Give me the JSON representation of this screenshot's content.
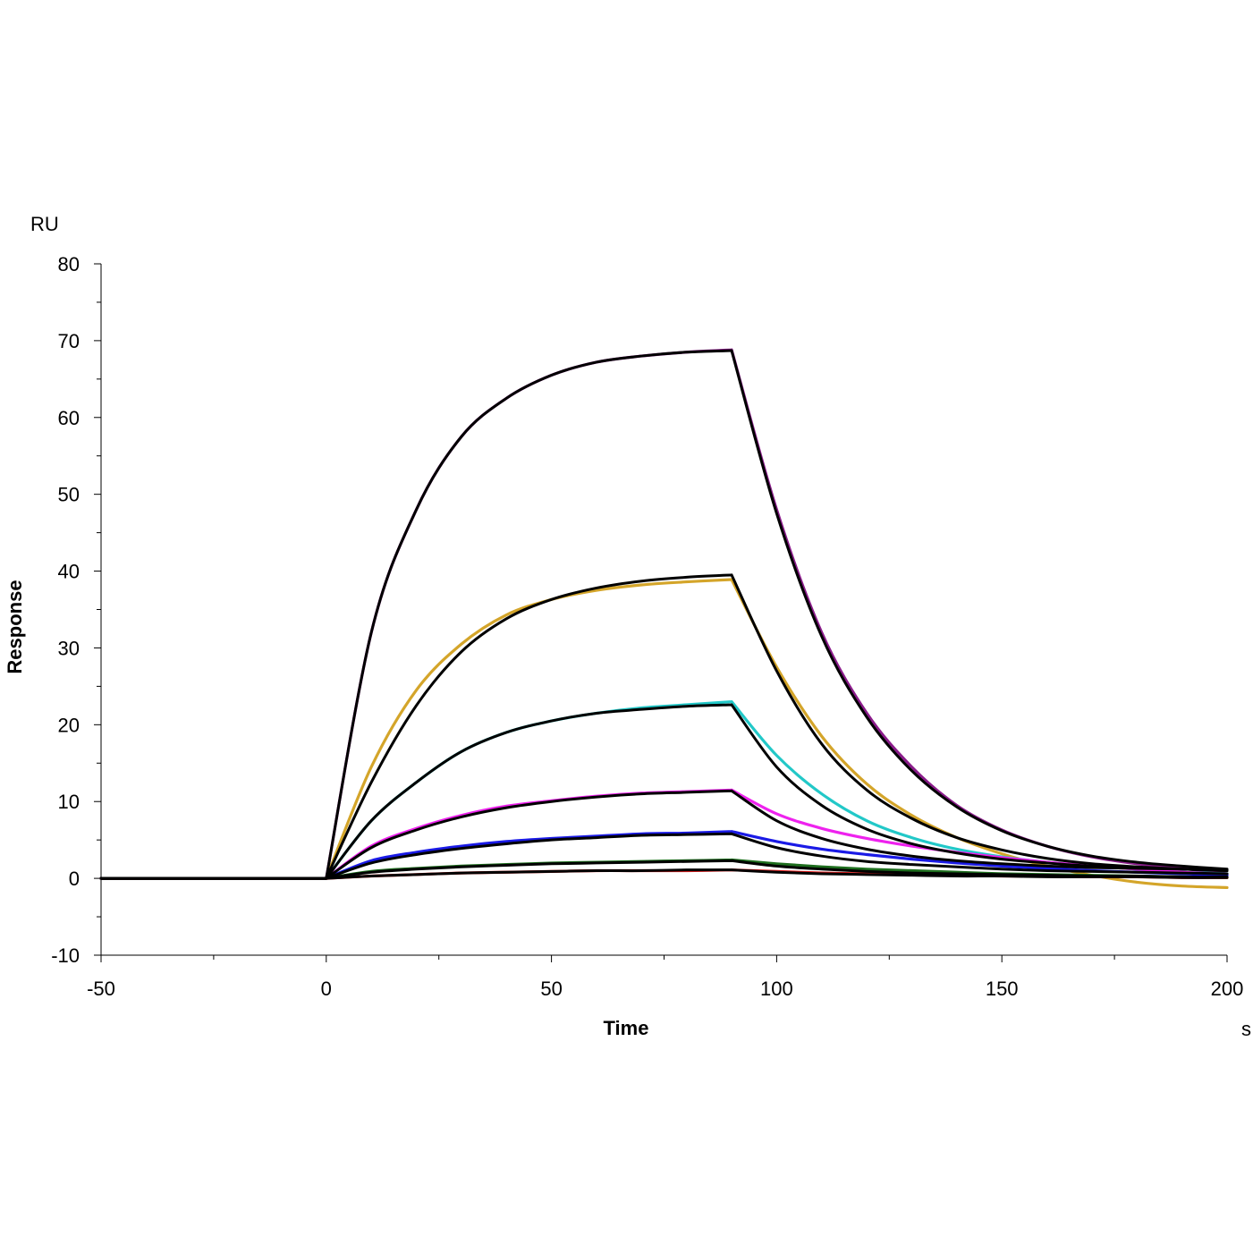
{
  "chart_data": {
    "type": "line",
    "title": "",
    "xlabel": "Time",
    "ylabel": "Response",
    "x_unit": "s",
    "y_unit": "RU",
    "xlim": [
      -50,
      200
    ],
    "ylim": [
      -10,
      80
    ],
    "x_ticks": [
      -50,
      0,
      50,
      100,
      150,
      200
    ],
    "x_tick_labels": [
      "-50",
      "0",
      "50",
      "100",
      "150",
      "200"
    ],
    "y_ticks": [
      -10,
      0,
      10,
      20,
      30,
      40,
      50,
      60,
      70,
      80
    ],
    "y_tick_labels": [
      "-10",
      "0",
      "10",
      "20",
      "30",
      "40",
      "50",
      "60",
      "70",
      "80"
    ],
    "grid": false,
    "legend": "none",
    "series": [
      {
        "color": "#8B1C8B",
        "x": [
          -50,
          0,
          10,
          20,
          30,
          40,
          50,
          60,
          70,
          80,
          90,
          100,
          110,
          120,
          130,
          140,
          150,
          160,
          170,
          180,
          190,
          200
        ],
        "y": [
          0,
          0,
          32,
          48,
          57.5,
          62.5,
          65.5,
          67.2,
          68,
          68.5,
          68.8,
          48,
          32,
          21.5,
          14.5,
          9.5,
          6.3,
          4.2,
          2.8,
          1.9,
          1.3,
          0.6
        ]
      },
      {
        "color": "#D4A52A",
        "x": [
          -50,
          0,
          10,
          20,
          30,
          40,
          50,
          60,
          70,
          80,
          90,
          100,
          110,
          120,
          130,
          140,
          150,
          160,
          170,
          180,
          190,
          200
        ],
        "y": [
          0,
          0,
          14.5,
          24.5,
          30.5,
          34.3,
          36.3,
          37.5,
          38.2,
          38.6,
          38.9,
          27.5,
          18.5,
          12.3,
          8.2,
          5.3,
          3.2,
          1.6,
          0.4,
          -0.5,
          -1,
          -1.2
        ]
      },
      {
        "color": "#22C8C8",
        "x": [
          -50,
          0,
          10,
          20,
          30,
          40,
          50,
          60,
          70,
          80,
          90,
          100,
          110,
          120,
          130,
          140,
          150,
          160,
          170,
          180,
          190,
          200
        ],
        "y": [
          0,
          0,
          7.5,
          12.5,
          16.5,
          19,
          20.5,
          21.5,
          22.2,
          22.6,
          23,
          16,
          11,
          7.5,
          5.3,
          3.8,
          2.8,
          2.1,
          1.6,
          1.2,
          0.8,
          0.6
        ]
      },
      {
        "color": "#EE22EE",
        "x": [
          -50,
          0,
          10,
          20,
          30,
          40,
          50,
          60,
          70,
          80,
          90,
          100,
          110,
          120,
          130,
          140,
          150,
          160,
          170,
          180,
          190,
          200
        ],
        "y": [
          0,
          0,
          4.2,
          6.5,
          8.2,
          9.4,
          10.1,
          10.7,
          11.1,
          11.3,
          11.5,
          8.4,
          6.5,
          5.2,
          4.2,
          3.4,
          2.7,
          2.1,
          1.6,
          1.2,
          0.8,
          0.5
        ]
      },
      {
        "color": "#1A1AE6",
        "x": [
          -50,
          0,
          10,
          20,
          30,
          40,
          50,
          60,
          70,
          80,
          90,
          100,
          110,
          120,
          130,
          140,
          150,
          160,
          170,
          180,
          190,
          200
        ],
        "y": [
          0,
          0,
          2.3,
          3.4,
          4.2,
          4.8,
          5.2,
          5.5,
          5.8,
          5.9,
          6.1,
          4.8,
          3.8,
          3.1,
          2.5,
          2.0,
          1.6,
          1.3,
          1.0,
          0.8,
          0.6,
          0.4
        ]
      },
      {
        "color": "#1E6E1E",
        "x": [
          -50,
          0,
          10,
          20,
          30,
          40,
          50,
          60,
          70,
          80,
          90,
          100,
          110,
          120,
          130,
          140,
          150,
          160,
          170,
          180,
          190,
          200
        ],
        "y": [
          0,
          0,
          0.9,
          1.3,
          1.6,
          1.8,
          2.0,
          2.1,
          2.2,
          2.3,
          2.4,
          1.9,
          1.5,
          1.2,
          1.0,
          0.8,
          0.6,
          0.5,
          0.4,
          0.3,
          0.2,
          0.1
        ]
      },
      {
        "color": "#DD1C1C",
        "x": [
          -50,
          0,
          10,
          20,
          30,
          40,
          50,
          60,
          70,
          80,
          90,
          100,
          110,
          120,
          130,
          140,
          150,
          160,
          170,
          180,
          190,
          200
        ],
        "y": [
          0,
          0,
          0.3,
          0.5,
          0.7,
          0.8,
          0.9,
          1.0,
          1.0,
          1.0,
          1.1,
          0.9,
          0.7,
          0.6,
          0.5,
          0.4,
          0.3,
          0.3,
          0.2,
          0.2,
          0.1,
          0.1
        ]
      },
      {
        "color": "#000000",
        "x": [
          -50,
          0,
          10,
          20,
          30,
          40,
          50,
          60,
          70,
          80,
          90,
          100,
          110,
          120,
          130,
          140,
          150,
          160,
          170,
          180,
          190,
          200
        ],
        "y": [
          0,
          0,
          32,
          48,
          57.5,
          62.5,
          65.5,
          67.2,
          68,
          68.5,
          68.7,
          47.5,
          31.5,
          21,
          14,
          9.3,
          6.2,
          4.2,
          2.9,
          2.1,
          1.6,
          1.2
        ]
      },
      {
        "color": "#000000",
        "x": [
          -50,
          0,
          10,
          20,
          30,
          40,
          50,
          60,
          70,
          80,
          90,
          100,
          110,
          120,
          130,
          140,
          150,
          160,
          170,
          180,
          190,
          200
        ],
        "y": [
          0,
          0,
          12.5,
          22.5,
          29.5,
          33.8,
          36.3,
          37.8,
          38.7,
          39.2,
          39.5,
          27,
          17.5,
          11.5,
          7.8,
          5.3,
          3.7,
          2.6,
          1.9,
          1.5,
          1.2,
          1.0
        ]
      },
      {
        "color": "#000000",
        "x": [
          -50,
          0,
          10,
          20,
          30,
          40,
          50,
          60,
          70,
          80,
          90,
          100,
          110,
          120,
          130,
          140,
          150,
          160,
          170,
          180,
          190,
          200
        ],
        "y": [
          0,
          0,
          7.5,
          12.5,
          16.5,
          19,
          20.5,
          21.5,
          22,
          22.4,
          22.6,
          14.5,
          9.5,
          6.4,
          4.5,
          3.3,
          2.5,
          2.0,
          1.6,
          1.4,
          1.2,
          1.0
        ]
      },
      {
        "color": "#000000",
        "x": [
          -50,
          0,
          10,
          20,
          30,
          40,
          50,
          60,
          70,
          80,
          90,
          100,
          110,
          120,
          130,
          140,
          150,
          160,
          170,
          180,
          190,
          200
        ],
        "y": [
          0,
          0,
          4.0,
          6.3,
          8.0,
          9.2,
          10.0,
          10.6,
          11.0,
          11.2,
          11.4,
          7.5,
          5.2,
          3.8,
          2.9,
          2.3,
          1.9,
          1.6,
          1.4,
          1.3,
          1.2,
          1.1
        ]
      },
      {
        "color": "#000000",
        "x": [
          -50,
          0,
          10,
          20,
          30,
          40,
          50,
          60,
          70,
          80,
          90,
          100,
          110,
          120,
          130,
          140,
          150,
          160,
          170,
          180,
          190,
          200
        ],
        "y": [
          0,
          0,
          2.0,
          3.1,
          3.9,
          4.5,
          5.0,
          5.3,
          5.6,
          5.7,
          5.8,
          4.0,
          2.9,
          2.2,
          1.8,
          1.5,
          1.2,
          1.0,
          0.9,
          0.8,
          0.7,
          0.6
        ]
      },
      {
        "color": "#000000",
        "x": [
          -50,
          0,
          10,
          20,
          30,
          40,
          50,
          60,
          70,
          80,
          90,
          100,
          110,
          120,
          130,
          140,
          150,
          160,
          170,
          180,
          190,
          200
        ],
        "y": [
          0,
          0,
          0.8,
          1.2,
          1.5,
          1.7,
          1.9,
          2.0,
          2.1,
          2.2,
          2.3,
          1.6,
          1.2,
          0.9,
          0.7,
          0.6,
          0.5,
          0.4,
          0.3,
          0.3,
          0.2,
          0.2
        ]
      },
      {
        "color": "#000000",
        "x": [
          -50,
          0,
          10,
          20,
          30,
          40,
          50,
          60,
          70,
          80,
          90,
          100,
          110,
          120,
          130,
          140,
          150,
          160,
          170,
          180,
          190,
          200
        ],
        "y": [
          0,
          0,
          0.3,
          0.5,
          0.7,
          0.8,
          0.9,
          1.0,
          1.0,
          1.1,
          1.1,
          0.8,
          0.6,
          0.5,
          0.4,
          0.3,
          0.3,
          0.2,
          0.2,
          0.2,
          0.1,
          0.1
        ]
      }
    ]
  }
}
